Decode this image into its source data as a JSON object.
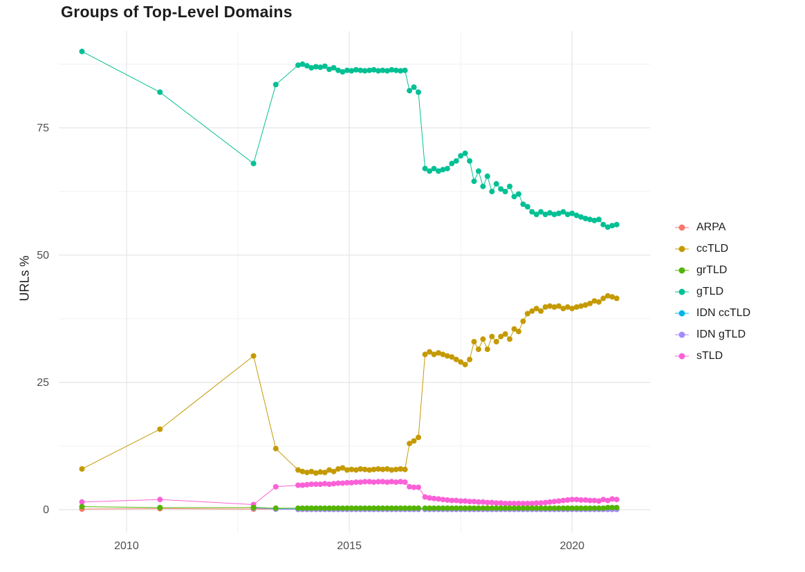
{
  "chart_data": {
    "type": "line",
    "title": "Groups of Top-Level Domains",
    "xlabel": "",
    "ylabel": "URLs %",
    "legend_position": "right",
    "grid": true,
    "xlim": [
      2008.48,
      2021.75
    ],
    "ylim": [
      -4.5,
      94
    ],
    "x_ticks": [
      2010,
      2015,
      2020
    ],
    "x_tick_labels": [
      "2010",
      "2015",
      "2020"
    ],
    "y_ticks": [
      0,
      25,
      50,
      75
    ],
    "y_tick_labels": [
      "0",
      "25",
      "50",
      "75"
    ],
    "x": [
      2009.0,
      2010.75,
      2012.85,
      2013.35,
      2013.85,
      2013.95,
      2014.05,
      2014.15,
      2014.25,
      2014.35,
      2014.45,
      2014.55,
      2014.65,
      2014.75,
      2014.85,
      2014.95,
      2015.05,
      2015.15,
      2015.25,
      2015.35,
      2015.45,
      2015.55,
      2015.65,
      2015.75,
      2015.85,
      2015.95,
      2016.05,
      2016.15,
      2016.25,
      2016.35,
      2016.45,
      2016.55,
      2016.7,
      2016.8,
      2016.9,
      2017.0,
      2017.1,
      2017.2,
      2017.3,
      2017.4,
      2017.5,
      2017.6,
      2017.7,
      2017.8,
      2017.9,
      2018.0,
      2018.1,
      2018.2,
      2018.3,
      2018.4,
      2018.5,
      2018.6,
      2018.7,
      2018.8,
      2018.9,
      2019.0,
      2019.1,
      2019.2,
      2019.3,
      2019.4,
      2019.5,
      2019.6,
      2019.7,
      2019.8,
      2019.9,
      2020.0,
      2020.1,
      2020.2,
      2020.3,
      2020.4,
      2020.5,
      2020.6,
      2020.7,
      2020.8,
      2020.9,
      2021.0
    ],
    "series": [
      {
        "name": "ARPA",
        "color": "#F8766D",
        "values": [
          0.1,
          0.2,
          0.1,
          0.1,
          0.1,
          0.1,
          0.1,
          0.1,
          0.1,
          0.1,
          0.1,
          0.1,
          0.1,
          0.1,
          0.1,
          0.1,
          0.1,
          0.1,
          0.1,
          0.1,
          0.1,
          0.1,
          0.1,
          0.1,
          0.1,
          0.1,
          0.1,
          0.1,
          0.1,
          0.1,
          0.1,
          0.1,
          0.1,
          0.1,
          0.1,
          0.1,
          0.1,
          0.1,
          0.1,
          0.1,
          0.1,
          0.1,
          0.1,
          0.1,
          0.1,
          0.1,
          0.1,
          0.1,
          0.1,
          0.1,
          0.1,
          0.1,
          0.1,
          0.1,
          0.1,
          0.1,
          0.1,
          0.1,
          0.1,
          0.1,
          0.1,
          0.1,
          0.1,
          0.1,
          0.1,
          0.1,
          0.1,
          0.1,
          0.1,
          0.1,
          0.1,
          0.1,
          0.1,
          0.1,
          0.1,
          0.1
        ]
      },
      {
        "name": "ccTLD",
        "color": "#C49A00",
        "values": [
          8.0,
          15.8,
          30.2,
          12.0,
          7.8,
          7.5,
          7.3,
          7.5,
          7.2,
          7.4,
          7.3,
          7.8,
          7.5,
          8.0,
          8.2,
          7.8,
          7.9,
          7.8,
          8.0,
          7.9,
          7.8,
          7.9,
          8.0,
          7.9,
          8.0,
          7.8,
          7.9,
          8.0,
          7.9,
          13.0,
          13.5,
          14.2,
          30.5,
          31.0,
          30.5,
          30.8,
          30.5,
          30.2,
          30.0,
          29.5,
          29.0,
          28.5,
          29.5,
          33.0,
          31.5,
          33.5,
          31.5,
          34.0,
          33.0,
          34.0,
          34.5,
          33.5,
          35.5,
          35.0,
          37.0,
          38.5,
          39.0,
          39.5,
          39.0,
          39.8,
          40.0,
          39.8,
          40.0,
          39.5,
          39.8,
          39.5,
          39.8,
          40.0,
          40.2,
          40.5,
          41.0,
          40.8,
          41.5,
          42.0,
          41.8,
          41.5
        ]
      },
      {
        "name": "grTLD",
        "color": "#53B400",
        "values": [
          0.6,
          0.4,
          0.4,
          0.3,
          0.3,
          0.3,
          0.3,
          0.3,
          0.3,
          0.3,
          0.3,
          0.3,
          0.3,
          0.3,
          0.3,
          0.3,
          0.3,
          0.3,
          0.3,
          0.3,
          0.3,
          0.3,
          0.3,
          0.3,
          0.3,
          0.3,
          0.3,
          0.3,
          0.3,
          0.3,
          0.3,
          0.3,
          0.3,
          0.3,
          0.3,
          0.3,
          0.3,
          0.3,
          0.3,
          0.3,
          0.3,
          0.3,
          0.3,
          0.3,
          0.3,
          0.3,
          0.3,
          0.3,
          0.3,
          0.3,
          0.3,
          0.3,
          0.3,
          0.3,
          0.3,
          0.3,
          0.3,
          0.3,
          0.3,
          0.3,
          0.3,
          0.3,
          0.3,
          0.3,
          0.3,
          0.3,
          0.3,
          0.3,
          0.3,
          0.3,
          0.3,
          0.3,
          0.3,
          0.4,
          0.4,
          0.4
        ]
      },
      {
        "name": "gTLD",
        "color": "#00C094",
        "values": [
          90.0,
          82.0,
          68.0,
          83.5,
          87.3,
          87.5,
          87.2,
          86.8,
          87.0,
          86.9,
          87.1,
          86.5,
          86.8,
          86.3,
          86.0,
          86.3,
          86.2,
          86.4,
          86.3,
          86.2,
          86.3,
          86.4,
          86.2,
          86.3,
          86.2,
          86.4,
          86.3,
          86.2,
          86.3,
          82.3,
          83.0,
          82.0,
          67.0,
          66.5,
          67.0,
          66.5,
          66.8,
          67.0,
          68.0,
          68.5,
          69.5,
          70.0,
          68.5,
          64.5,
          66.5,
          63.5,
          65.5,
          62.5,
          64.0,
          63.0,
          62.5,
          63.5,
          61.5,
          62.0,
          60.0,
          59.5,
          58.5,
          58.0,
          58.5,
          58.0,
          58.3,
          58.0,
          58.2,
          58.5,
          58.0,
          58.2,
          57.8,
          57.5,
          57.2,
          57.0,
          56.8,
          57.0,
          56.0,
          55.5,
          55.8,
          56.0
        ]
      },
      {
        "name": "IDN ccTLD",
        "color": "#00B6EB",
        "values": [
          null,
          null,
          0.5,
          0.2,
          0.1,
          0.1,
          0.1,
          0.1,
          0.1,
          0.1,
          0.1,
          0.1,
          0.1,
          0.1,
          0.1,
          0.1,
          0.1,
          0.1,
          0.1,
          0.1,
          0.1,
          0.1,
          0.1,
          0.1,
          0.1,
          0.1,
          0.1,
          0.1,
          0.1,
          0.1,
          0.1,
          0.1,
          0.1,
          0.1,
          0.1,
          0.1,
          0.1,
          0.1,
          0.1,
          0.1,
          0.1,
          0.1,
          0.1,
          0.1,
          0.1,
          0.1,
          0.1,
          0.1,
          0.1,
          0.1,
          0.1,
          0.1,
          0.1,
          0.1,
          0.1,
          0.1,
          0.1,
          0.1,
          0.1,
          0.1,
          0.1,
          0.1,
          0.1,
          0.1,
          0.1,
          0.1,
          0.1,
          0.1,
          0.1,
          0.1,
          0.1,
          0.1,
          0.1,
          0.1,
          0.1,
          0.1
        ]
      },
      {
        "name": "IDN gTLD",
        "color": "#A58AFF",
        "values": [
          null,
          null,
          0.3,
          0.1,
          0.05,
          0.05,
          0.05,
          0.05,
          0.05,
          0.05,
          0.05,
          0.05,
          0.05,
          0.05,
          0.05,
          0.05,
          0.05,
          0.05,
          0.05,
          0.05,
          0.05,
          0.05,
          0.05,
          0.05,
          0.05,
          0.05,
          0.05,
          0.05,
          0.05,
          0.05,
          0.05,
          0.05,
          0.05,
          0.05,
          0.05,
          0.05,
          0.05,
          0.05,
          0.05,
          0.05,
          0.05,
          0.05,
          0.05,
          0.05,
          0.05,
          0.05,
          0.05,
          0.05,
          0.05,
          0.05,
          0.05,
          0.05,
          0.05,
          0.05,
          0.05,
          0.05,
          0.05,
          0.05,
          0.05,
          0.05,
          0.05,
          0.05,
          0.05,
          0.05,
          0.05,
          0.05,
          0.05,
          0.05,
          0.05,
          0.05,
          0.05,
          0.05,
          0.05,
          0.05,
          0.05,
          0.05
        ]
      },
      {
        "name": "sTLD",
        "color": "#FB61D7",
        "values": [
          1.5,
          2.0,
          1.0,
          4.5,
          4.8,
          4.8,
          4.9,
          5.0,
          5.0,
          5.0,
          5.1,
          5.0,
          5.1,
          5.2,
          5.2,
          5.3,
          5.3,
          5.4,
          5.4,
          5.5,
          5.5,
          5.4,
          5.5,
          5.5,
          5.4,
          5.5,
          5.4,
          5.5,
          5.4,
          4.5,
          4.4,
          4.4,
          2.5,
          2.3,
          2.2,
          2.1,
          2.0,
          1.9,
          1.8,
          1.8,
          1.7,
          1.7,
          1.6,
          1.6,
          1.5,
          1.5,
          1.4,
          1.4,
          1.3,
          1.3,
          1.2,
          1.2,
          1.2,
          1.2,
          1.2,
          1.2,
          1.2,
          1.3,
          1.3,
          1.4,
          1.5,
          1.6,
          1.7,
          1.8,
          1.9,
          2.0,
          2.0,
          1.9,
          1.9,
          1.8,
          1.8,
          1.7,
          2.0,
          1.8,
          2.1,
          2.0
        ]
      }
    ]
  }
}
